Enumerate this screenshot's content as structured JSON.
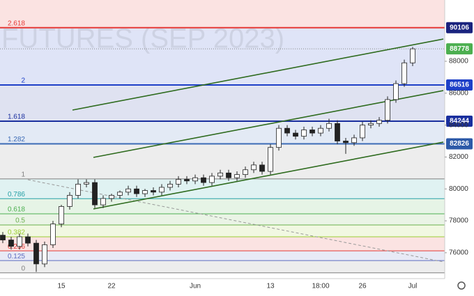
{
  "chart_data": {
    "type": "candlestick",
    "watermark": "FUTURES (SEP 2023)",
    "categories": [
      null,
      null,
      null,
      null,
      null,
      null,
      null,
      "15",
      null,
      null,
      null,
      null,
      null,
      "22",
      null,
      null,
      null,
      null,
      null,
      null,
      null,
      null,
      null,
      "Jun",
      null,
      null,
      null,
      null,
      null,
      null,
      null,
      null,
      "13",
      null,
      null,
      null,
      null,
      null,
      "18:00",
      null,
      null,
      null,
      null,
      "26",
      null,
      null,
      null,
      null,
      null,
      "Jul"
    ],
    "open": [
      77100,
      76800,
      76400,
      77000,
      76600,
      75300,
      76500,
      77800,
      78900,
      79600,
      80300,
      80400,
      79000,
      79400,
      79600,
      79800,
      80000,
      79700,
      79900,
      79800,
      80100,
      80300,
      80600,
      80500,
      80700,
      80400,
      80800,
      81000,
      80700,
      80900,
      81200,
      81500,
      81100,
      82600,
      83800,
      83500,
      83300,
      83700,
      83500,
      83800,
      84100,
      83000,
      82900,
      83200,
      84000,
      84100,
      84300,
      85600,
      86600,
      87900
    ],
    "high": [
      77300,
      77000,
      77200,
      77200,
      76800,
      76700,
      78000,
      79000,
      79800,
      80600,
      80600,
      80600,
      79600,
      79700,
      79900,
      80200,
      80200,
      80000,
      80100,
      80300,
      80500,
      80800,
      80800,
      80900,
      80900,
      81000,
      81200,
      81200,
      81100,
      81400,
      81700,
      81700,
      82800,
      84000,
      84000,
      83700,
      83900,
      83900,
      84000,
      84400,
      84300,
      83200,
      83400,
      84200,
      84300,
      84500,
      85800,
      86800,
      88100,
      88900
    ],
    "low": [
      76600,
      76200,
      76200,
      76400,
      74800,
      75100,
      76300,
      77600,
      78700,
      79400,
      80100,
      78800,
      78800,
      79200,
      79400,
      79600,
      79500,
      79500,
      79600,
      79600,
      79900,
      80100,
      80300,
      80300,
      80200,
      80200,
      80600,
      80500,
      80500,
      80700,
      81000,
      80900,
      80900,
      82400,
      83300,
      83100,
      83100,
      83300,
      83300,
      83600,
      82800,
      82200,
      82700,
      83000,
      83800,
      83900,
      84100,
      85400,
      86400,
      87700
    ],
    "close": [
      76800,
      76400,
      77000,
      76600,
      75300,
      76500,
      77800,
      78900,
      79600,
      80300,
      80400,
      79000,
      79400,
      79600,
      79800,
      80000,
      79700,
      79900,
      79800,
      80100,
      80300,
      80600,
      80500,
      80700,
      80400,
      80800,
      81000,
      80700,
      80900,
      81200,
      81500,
      81100,
      82600,
      83800,
      83500,
      83300,
      83700,
      83500,
      83800,
      84100,
      83000,
      82900,
      83200,
      84000,
      84100,
      84300,
      85600,
      86600,
      87900,
      88778
    ],
    "last_price": 88778,
    "last_price_color": "#4caf50",
    "fib_levels": [
      {
        "label": "2.618",
        "price": 90106,
        "color": "#e53935",
        "tagged": true,
        "tag_color": "#1a237e"
      },
      {
        "label": "2",
        "price": 86516,
        "color": "#1e40c8",
        "tagged": true,
        "tag_color": "#1e40c8"
      },
      {
        "label": "1.618",
        "price": 84244,
        "color": "#1a2f9e",
        "tagged": true,
        "tag_color": "#1a2f9e"
      },
      {
        "label": "1.282",
        "price": 82826,
        "color": "#3b6ab5",
        "tagged": true,
        "tag_color": "#2d5aa8"
      },
      {
        "label": "1",
        "price": 80628,
        "color": "#808080",
        "tagged": false
      },
      {
        "label": "0.786",
        "price": 79389,
        "color": "#26a0a6",
        "tagged": false
      },
      {
        "label": "0.618",
        "price": 78437,
        "color": "#4caf50",
        "tagged": false
      },
      {
        "label": "0.5",
        "price": 77740,
        "color": "#6ab04c",
        "tagged": false
      },
      {
        "label": "0.382",
        "price": 77000,
        "color": "#9acd32",
        "tagged": false
      },
      {
        "label": "0.236",
        "price": 76120,
        "color": "#e53935",
        "tagged": false
      },
      {
        "label": "0.125",
        "price": 75510,
        "color": "#5c6bc0",
        "tagged": false
      },
      {
        "label": "0",
        "price": 74740,
        "color": "#808080",
        "tagged": false
      }
    ],
    "ylim": [
      74380,
      91840
    ],
    "yticks": [
      76000,
      78000,
      80000,
      82000,
      84000,
      86000,
      88000
    ]
  }
}
